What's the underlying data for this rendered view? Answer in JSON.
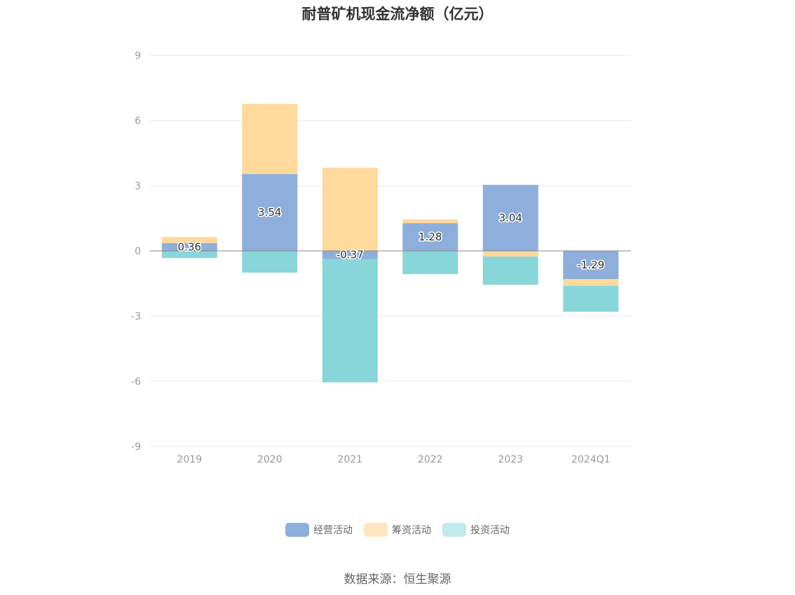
{
  "chart_data": {
    "type": "bar",
    "stacked": true,
    "title": "耐普矿机现金流净额（亿元）",
    "categories": [
      "2019",
      "2020",
      "2021",
      "2022",
      "2023",
      "2024Q1"
    ],
    "series": [
      {
        "name": "经营活动",
        "color": "#8eaedb",
        "values": [
          0.36,
          3.54,
          -0.37,
          1.28,
          3.04,
          -1.29
        ]
      },
      {
        "name": "筹资活动",
        "color": "#ffd99c",
        "values": [
          0.28,
          3.23,
          3.83,
          0.17,
          -0.26,
          -0.32
        ]
      },
      {
        "name": "投资活动",
        "color": "#88d6d9",
        "values": [
          -0.33,
          -1.0,
          -5.68,
          -1.07,
          -1.3,
          -1.19
        ]
      }
    ],
    "data_labels": [
      "0.36",
      "3.54",
      "-0.37",
      "1.28",
      "3.04",
      "-1.29"
    ],
    "yticks": [
      "9",
      "6",
      "3",
      "0",
      "-3",
      "-6",
      "-9"
    ],
    "ylim": [
      -9,
      9
    ],
    "grid": true,
    "legend_position": "bottom",
    "legend_colors": [
      "#8eaedb",
      "#ffe5c2",
      "#c2eaec"
    ]
  },
  "source": "数据来源：恒生聚源"
}
